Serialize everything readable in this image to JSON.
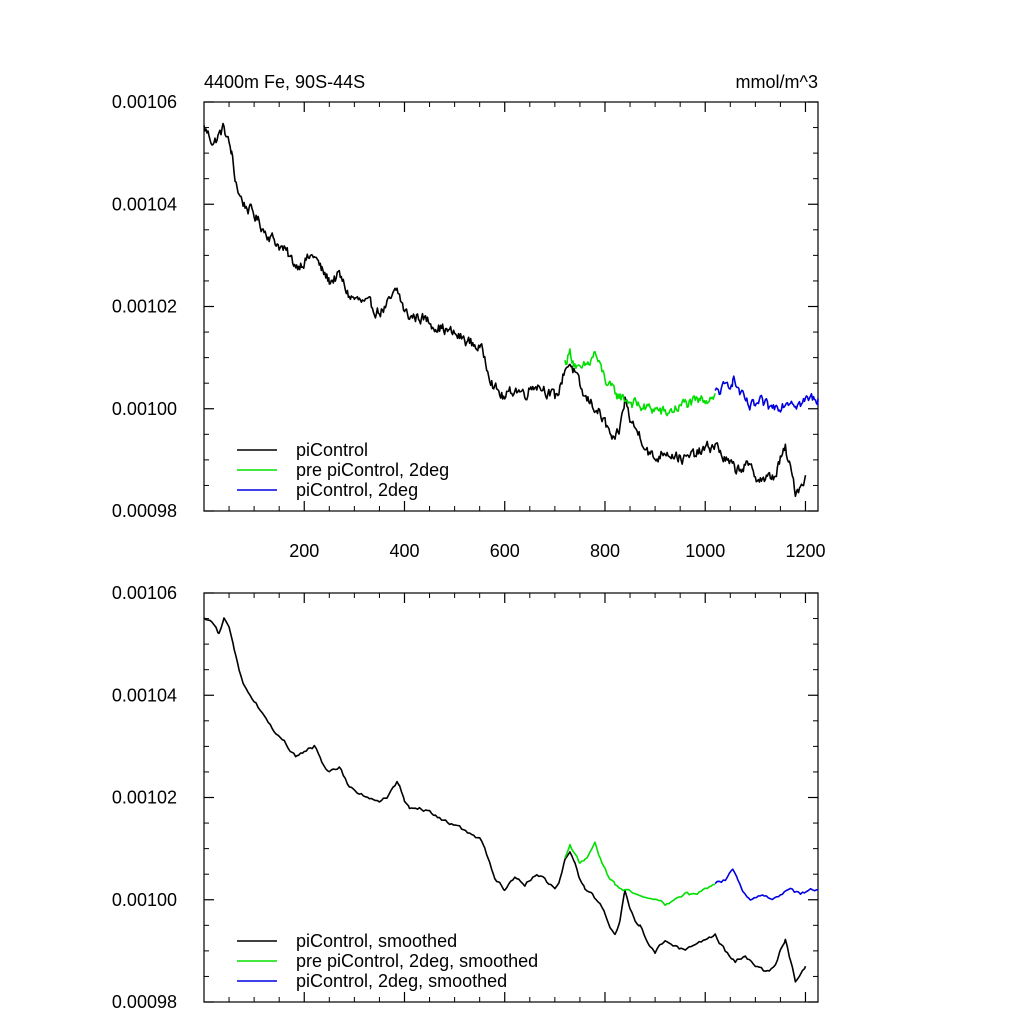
{
  "chart_data": [
    {
      "type": "line",
      "title_left": "4400m Fe, 90S-44S",
      "title_right": "mmol/m^3",
      "xlabel": "",
      "ylabel": "",
      "xlim": [
        0,
        1225
      ],
      "ylim": [
        0.00098,
        0.00106
      ],
      "x_ticks": [
        200,
        400,
        600,
        800,
        1000,
        1200
      ],
      "x_tick_labels": [
        "200",
        "400",
        "600",
        "800",
        "1000",
        "1200"
      ],
      "y_ticks": [
        0.00098,
        0.001,
        0.00102,
        0.00104,
        0.00106
      ],
      "y_tick_labels": [
        "0.00098",
        "0.00100",
        "0.00102",
        "0.00104",
        "0.00106"
      ],
      "legend_position": "bottom-left",
      "series": [
        {
          "name": "piControl",
          "color": "#000000",
          "x": [
            0,
            20,
            40,
            55,
            60,
            70,
            80,
            100,
            120,
            140,
            160,
            175,
            185,
            200,
            220,
            235,
            250,
            270,
            290,
            310,
            330,
            350,
            365,
            385,
            390,
            400,
            410,
            430,
            450,
            470,
            490,
            510,
            530,
            550,
            560,
            570,
            580,
            590,
            600,
            620,
            640,
            660,
            680,
            700,
            710,
            720,
            730,
            740,
            750,
            760,
            775,
            790,
            800,
            810,
            820,
            830,
            840,
            850,
            860,
            870,
            880,
            890,
            900,
            910,
            920,
            940,
            960,
            980,
            1000,
            1020,
            1040,
            1060,
            1080,
            1100,
            1120,
            1140,
            1150,
            1160,
            1170,
            1180,
            1190,
            1200
          ],
          "y": [
            0.001055,
            0.001052,
            0.001055,
            0.00105,
            0.001046,
            0.001042,
            0.00104,
            0.001038,
            0.001035,
            0.001033,
            0.001031,
            0.001029,
            0.001028,
            0.001029,
            0.00103,
            0.001027,
            0.001025,
            0.001026,
            0.001022,
            0.001021,
            0.00102,
            0.001019,
            0.00102,
            0.001023,
            0.001022,
            0.001019,
            0.001018,
            0.001018,
            0.001017,
            0.001016,
            0.001015,
            0.001014,
            0.001013,
            0.001012,
            0.00101,
            0.001007,
            0.001004,
            0.001003,
            0.001002,
            0.001004,
            0.001003,
            0.001005,
            0.001004,
            0.001002,
            0.001004,
            0.001008,
            0.001009,
            0.001007,
            0.001004,
            0.001002,
            0.001001,
            0.000999,
            0.000997,
            0.000995,
            0.000993,
            0.000996,
            0.001002,
            0.000998,
            0.000996,
            0.000995,
            0.000993,
            0.000991,
            0.00099,
            0.000991,
            0.000992,
            0.000991,
            0.00099,
            0.000991,
            0.000992,
            0.000993,
            0.00099,
            0.000988,
            0.000989,
            0.000987,
            0.000986,
            0.000987,
            0.00099,
            0.000992,
            0.000988,
            0.000984,
            0.000985,
            0.000987
          ]
        },
        {
          "name": "pre piControl, 2deg",
          "color": "#00e000",
          "x": [
            720,
            730,
            740,
            750,
            760,
            770,
            780,
            790,
            800,
            810,
            820,
            840,
            860,
            880,
            900,
            920,
            940,
            960,
            980,
            1000,
            1020
          ],
          "y": [
            0.001009,
            0.001011,
            0.001009,
            0.001007,
            0.001008,
            0.001009,
            0.001011,
            0.001008,
            0.001006,
            0.001004,
            0.001003,
            0.001002,
            0.001001,
            0.001,
            0.001,
            0.000999,
            0.001,
            0.001001,
            0.001001,
            0.001002,
            0.001003
          ]
        },
        {
          "name": "piControl, 2deg",
          "color": "#0000e0",
          "x": [
            1020,
            1040,
            1055,
            1065,
            1075,
            1090,
            1110,
            1130,
            1150,
            1170,
            1190,
            1210,
            1225
          ],
          "y": [
            0.001003,
            0.001004,
            0.001006,
            0.001004,
            0.001002,
            0.001,
            0.001001,
            0.001,
            0.001001,
            0.001002,
            0.001001,
            0.001002,
            0.001002
          ]
        }
      ]
    },
    {
      "type": "line",
      "title_left": "",
      "title_right": "",
      "xlabel": "",
      "ylabel": "",
      "xlim": [
        0,
        1225
      ],
      "ylim": [
        0.00098,
        0.00106
      ],
      "x_ticks": [
        200,
        400,
        600,
        800,
        1000,
        1200
      ],
      "x_tick_labels": [],
      "y_ticks": [
        0.00098,
        0.001,
        0.00102,
        0.00104,
        0.00106
      ],
      "y_tick_labels": [
        "0.00098",
        "0.00100",
        "0.00102",
        "0.00104",
        "0.00106"
      ],
      "legend_position": "bottom-left",
      "series": [
        {
          "name": "piControl, smoothed",
          "color": "#000000",
          "x": [
            0,
            20,
            30,
            40,
            50,
            60,
            70,
            80,
            100,
            120,
            140,
            160,
            175,
            185,
            200,
            220,
            235,
            250,
            270,
            290,
            310,
            330,
            350,
            365,
            385,
            390,
            400,
            410,
            430,
            450,
            470,
            490,
            510,
            530,
            550,
            560,
            570,
            580,
            590,
            600,
            620,
            640,
            660,
            680,
            700,
            710,
            720,
            730,
            740,
            750,
            760,
            775,
            790,
            800,
            810,
            820,
            830,
            840,
            850,
            860,
            870,
            880,
            890,
            900,
            910,
            920,
            940,
            960,
            980,
            1000,
            1020,
            1040,
            1060,
            1080,
            1100,
            1120,
            1140,
            1150,
            1160,
            1170,
            1180,
            1190,
            1200
          ],
          "y": [
            0.001055,
            0.001054,
            0.001052,
            0.001055,
            0.001053,
            0.001049,
            0.001045,
            0.001042,
            0.001039,
            0.001036,
            0.001033,
            0.001031,
            0.001029,
            0.001028,
            0.001029,
            0.00103,
            0.001027,
            0.001025,
            0.001026,
            0.001022,
            0.001021,
            0.00102,
            0.001019,
            0.00102,
            0.001023,
            0.001022,
            0.001019,
            0.001018,
            0.001018,
            0.001017,
            0.001016,
            0.001015,
            0.001014,
            0.001013,
            0.001012,
            0.00101,
            0.001007,
            0.001004,
            0.001003,
            0.001002,
            0.001004,
            0.001003,
            0.001005,
            0.001004,
            0.001002,
            0.001004,
            0.001008,
            0.001009,
            0.001007,
            0.001004,
            0.001002,
            0.001001,
            0.000999,
            0.000997,
            0.000995,
            0.000993,
            0.000996,
            0.001002,
            0.000998,
            0.000996,
            0.000995,
            0.000993,
            0.000991,
            0.00099,
            0.000991,
            0.000992,
            0.000991,
            0.00099,
            0.000991,
            0.000992,
            0.000993,
            0.00099,
            0.000988,
            0.000989,
            0.000987,
            0.000986,
            0.000987,
            0.00099,
            0.000992,
            0.000988,
            0.000984,
            0.000985,
            0.000987
          ]
        },
        {
          "name": "pre piControl, 2deg, smoothed",
          "color": "#00e000",
          "x": [
            720,
            730,
            740,
            750,
            760,
            770,
            780,
            790,
            800,
            810,
            820,
            840,
            860,
            880,
            900,
            920,
            940,
            960,
            980,
            1000,
            1020
          ],
          "y": [
            0.001008,
            0.001011,
            0.001009,
            0.001007,
            0.001008,
            0.001009,
            0.001011,
            0.001008,
            0.001006,
            0.001004,
            0.001003,
            0.001002,
            0.001001,
            0.001,
            0.001,
            0.000999,
            0.001,
            0.001001,
            0.001001,
            0.001002,
            0.001003
          ]
        },
        {
          "name": "piControl, 2deg, smoothed",
          "color": "#0000e0",
          "x": [
            1020,
            1040,
            1055,
            1065,
            1075,
            1090,
            1110,
            1130,
            1150,
            1170,
            1190,
            1210,
            1225
          ],
          "y": [
            0.001003,
            0.001004,
            0.001006,
            0.001004,
            0.001002,
            0.001,
            0.001001,
            0.001,
            0.001001,
            0.001002,
            0.001001,
            0.001002,
            0.001002
          ]
        }
      ]
    }
  ]
}
